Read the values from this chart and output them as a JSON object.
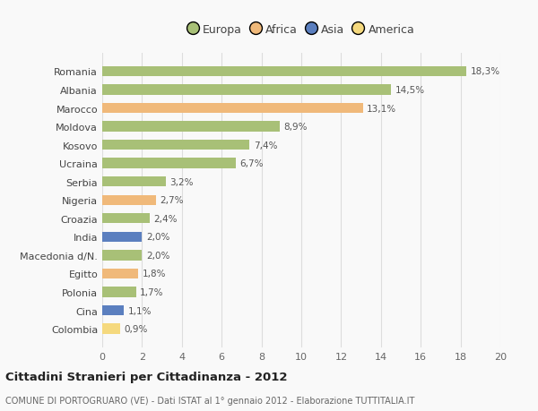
{
  "categories": [
    "Colombia",
    "Cina",
    "Polonia",
    "Egitto",
    "Macedonia d/N.",
    "India",
    "Croazia",
    "Nigeria",
    "Serbia",
    "Ucraina",
    "Kosovo",
    "Moldova",
    "Marocco",
    "Albania",
    "Romania"
  ],
  "values": [
    0.9,
    1.1,
    1.7,
    1.8,
    2.0,
    2.0,
    2.4,
    2.7,
    3.2,
    6.7,
    7.4,
    8.9,
    13.1,
    14.5,
    18.3
  ],
  "labels": [
    "0,9%",
    "1,1%",
    "1,7%",
    "1,8%",
    "2,0%",
    "2,0%",
    "2,4%",
    "2,7%",
    "3,2%",
    "6,7%",
    "7,4%",
    "8,9%",
    "13,1%",
    "14,5%",
    "18,3%"
  ],
  "colors": [
    "#f5d97e",
    "#5b7fbf",
    "#a8c077",
    "#f0b97a",
    "#a8c077",
    "#5b7fbf",
    "#a8c077",
    "#f0b97a",
    "#a8c077",
    "#a8c077",
    "#a8c077",
    "#a8c077",
    "#f0b97a",
    "#a8c077",
    "#a8c077"
  ],
  "legend_labels": [
    "Europa",
    "Africa",
    "Asia",
    "America"
  ],
  "legend_colors": [
    "#a8c077",
    "#f0b97a",
    "#5b7fbf",
    "#f5d97e"
  ],
  "title": "Cittadini Stranieri per Cittadinanza - 2012",
  "subtitle": "COMUNE DI PORTOGRUARO (VE) - Dati ISTAT al 1° gennaio 2012 - Elaborazione TUTTITALIA.IT",
  "xlim": [
    0,
    20
  ],
  "xticks": [
    0,
    2,
    4,
    6,
    8,
    10,
    12,
    14,
    16,
    18,
    20
  ],
  "background_color": "#f9f9f9",
  "grid_color": "#dddddd"
}
